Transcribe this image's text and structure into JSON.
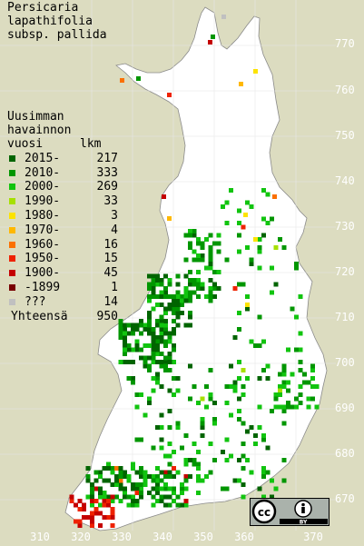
{
  "title": {
    "line1": "Persicaria",
    "line2": "lapathifolia",
    "line3": "subsp. pallida"
  },
  "legend": {
    "header1": "Uusimman",
    "header2": "havainnon",
    "header_left": "vuosi",
    "header_right": "lkm",
    "rows": [
      {
        "label": "2015-",
        "count": "217",
        "color": "#006400"
      },
      {
        "label": "2010-",
        "count": "333",
        "color": "#009600"
      },
      {
        "label": "2000-",
        "count": "269",
        "color": "#11c40f"
      },
      {
        "label": "1990-",
        "count": "33",
        "color": "#a6e000"
      },
      {
        "label": "1980-",
        "count": "3",
        "color": "#fce300"
      },
      {
        "label": "1970-",
        "count": "4",
        "color": "#ffb800"
      },
      {
        "label": "1960-",
        "count": "16",
        "color": "#fb7000"
      },
      {
        "label": "1950-",
        "count": "15",
        "color": "#ee2200"
      },
      {
        "label": "1900-",
        "count": "45",
        "color": "#c40000"
      },
      {
        "label": "-1899",
        "count": "1",
        "color": "#780000"
      },
      {
        "label": "???",
        "count": "14",
        "color": "#c0c0c0"
      }
    ],
    "total_label": "Yhteensä",
    "total_count": "950"
  },
  "axis": {
    "x_ticks": [
      "310",
      "320",
      "330",
      "340",
      "350",
      "360",
      "370"
    ],
    "y_ticks": [
      "770",
      "760",
      "750",
      "740",
      "730",
      "720",
      "710",
      "700",
      "690",
      "680",
      "670"
    ]
  },
  "license": {
    "cc": "cc",
    "by": "BY"
  },
  "colors": {
    "background": "#dcdcc0",
    "land": "#ffffff",
    "grid": "#ffffff"
  }
}
